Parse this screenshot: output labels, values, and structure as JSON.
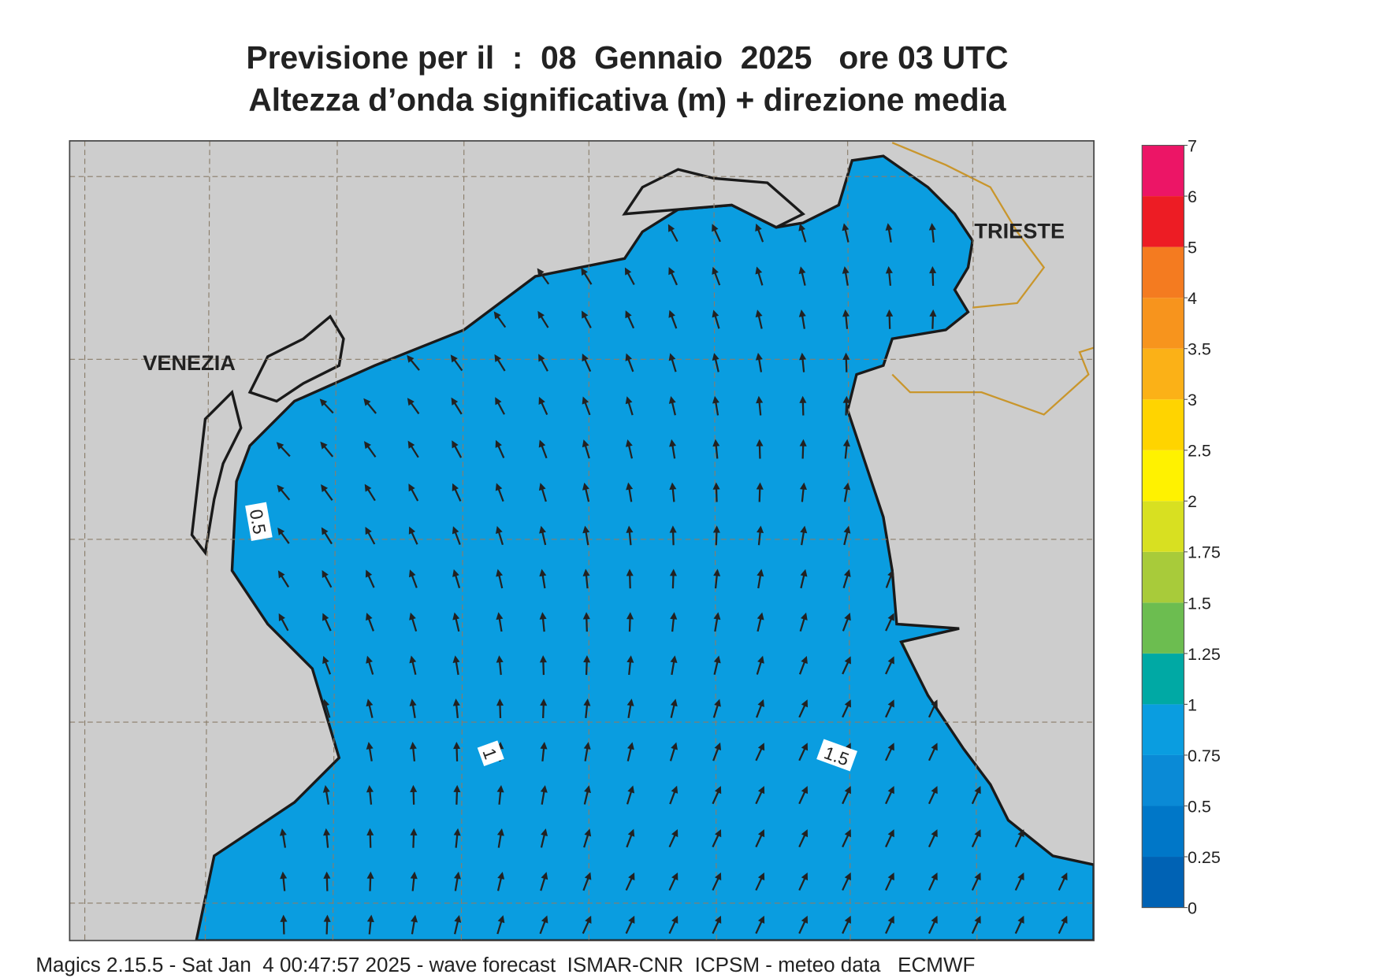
{
  "title": [
    "Previsione per il  :  08  Gennaio  2025   ore 03 UTC",
    "Altezza d’onda significativa (m) + direzione media"
  ],
  "places": [
    "VENEZIA",
    "TRIESTE"
  ],
  "contour_labels": [
    0.5,
    1,
    1.5
  ],
  "legend": {
    "ticks": [
      0,
      0.25,
      0.5,
      0.75,
      1,
      1.25,
      1.5,
      1.75,
      2,
      2.5,
      3,
      3.5,
      4,
      5,
      6,
      7
    ],
    "colors": [
      "#0062b4",
      "#0077c8",
      "#0a8ad6",
      "#0a9de0",
      "#00a9a4",
      "#6cbd50",
      "#a8cb3a",
      "#d8e021",
      "#fff200",
      "#ffd400",
      "#fbb117",
      "#f7941d",
      "#f47b20",
      "#ed1c24",
      "#ec1566"
    ]
  },
  "footer": "Magics 2.15.5 - Sat Jan  4 00:47:57 2025 - wave forecast  ISMAR-CNR  ICPSM - meteo data   ECMWF"
}
